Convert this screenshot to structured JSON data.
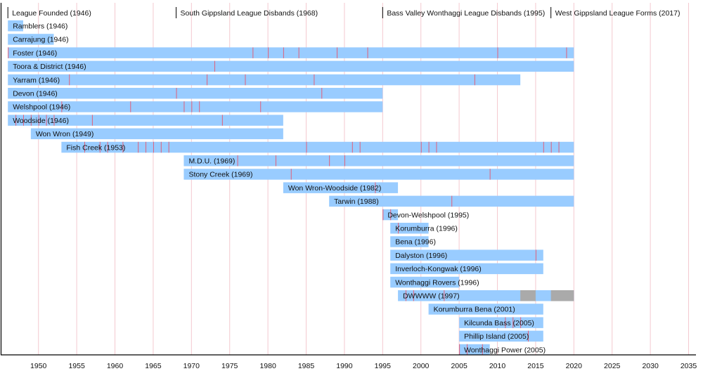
{
  "chart_data": {
    "type": "timeline",
    "xlim": [
      1945,
      2035
    ],
    "x_ticks": [
      1950,
      1955,
      1960,
      1965,
      1970,
      1975,
      1980,
      1985,
      1990,
      1995,
      2000,
      2005,
      2010,
      2015,
      2020,
      2025,
      2030,
      2035
    ],
    "grid": true,
    "colors": {
      "bar": "#99ccff",
      "premiership_mark": "#e0607a",
      "gap": "#aaaaaa",
      "grid": "#f4c9d0",
      "event_line": "#000000"
    },
    "events": [
      {
        "year": 1946,
        "label": "League Founded (1946)"
      },
      {
        "year": 1968,
        "label": "South Gippsland League Disbands (1968)"
      },
      {
        "year": 1995,
        "label": "Bass Valley Wonthaggi League Disbands (1995)"
      },
      {
        "year": 2017,
        "label": "West Gippsland League Forms (2017)"
      }
    ],
    "clubs": [
      {
        "label": "Ramblers (1946)",
        "start": 1946,
        "end": 1948,
        "marks": []
      },
      {
        "label": "Carrajung (1946)",
        "start": 1946,
        "end": 1952,
        "marks": []
      },
      {
        "label": "Foster (1946)",
        "start": 1946,
        "end": 2020,
        "marks": [
          1946,
          1978,
          1980,
          1982,
          1984,
          1989,
          1993,
          2010,
          2019
        ]
      },
      {
        "label": "Toora & District (1946)",
        "start": 1946,
        "end": 2020,
        "marks": [
          1973
        ]
      },
      {
        "label": "Yarram (1946)",
        "start": 1946,
        "end": 2013,
        "marks": [
          1954,
          1972,
          1977,
          1986,
          2007
        ]
      },
      {
        "label": "Devon (1946)",
        "start": 1946,
        "end": 1995,
        "marks": [
          1968,
          1987
        ]
      },
      {
        "label": "Welshpool (1946)",
        "start": 1946,
        "end": 1995,
        "marks": [
          1953,
          1962,
          1969,
          1970,
          1971,
          1979
        ]
      },
      {
        "label": "Woodside (1946)",
        "start": 1946,
        "end": 1982,
        "marks": [
          1947,
          1948,
          1949,
          1950,
          1951,
          1952,
          1957,
          1974
        ]
      },
      {
        "label": "Won Wron (1949)",
        "start": 1949,
        "end": 1982,
        "marks": []
      },
      {
        "label": "Fish Creek (1953)",
        "start": 1953,
        "end": 2020,
        "marks": [
          1956,
          1958,
          1959,
          1961,
          1963,
          1964,
          1965,
          1966,
          1967,
          1985,
          1991,
          1992,
          2000,
          2001,
          2002,
          2016,
          2017,
          2018
        ]
      },
      {
        "label": "M.D.U. (1969)",
        "start": 1969,
        "end": 2020,
        "marks": [
          1976,
          1981,
          1988,
          1990
        ]
      },
      {
        "label": "Stony Creek (1969)",
        "start": 1969,
        "end": 2020,
        "marks": [
          1983,
          2009
        ]
      },
      {
        "label": "Won Wron-Woodside (1982)",
        "start": 1982,
        "end": 1997,
        "marks": [
          1994
        ]
      },
      {
        "label": "Tarwin (1988)",
        "start": 1988,
        "end": 2020,
        "marks": [
          2004
        ]
      },
      {
        "label": "Devon-Welshpool (1995)",
        "start": 1995,
        "end": 1997,
        "marks": [
          1995,
          1996
        ]
      },
      {
        "label": "Korumburra (1996)",
        "start": 1996,
        "end": 2001,
        "marks": [
          1997
        ]
      },
      {
        "label": "Bena (1996)",
        "start": 1996,
        "end": 2001,
        "marks": []
      },
      {
        "label": "Dalyston (1996)",
        "start": 1996,
        "end": 2016,
        "marks": [
          2015
        ]
      },
      {
        "label": "Inverloch-Kongwak (1996)",
        "start": 1996,
        "end": 2016,
        "marks": []
      },
      {
        "label": "Wonthaggi Rovers (1996)",
        "start": 1996,
        "end": 2005,
        "marks": []
      },
      {
        "label": "DWWWW (1997)",
        "start": 1997,
        "end": 2020,
        "marks": [
          1998,
          1999,
          2003
        ],
        "gaps": [
          [
            2013,
            2015
          ],
          [
            2017,
            2020
          ]
        ]
      },
      {
        "label": "Korumburra Bena (2001)",
        "start": 2001,
        "end": 2016,
        "marks": []
      },
      {
        "label": "Kilcunda Bass (2005)",
        "start": 2005,
        "end": 2016,
        "marks": [
          2011,
          2012,
          2013
        ]
      },
      {
        "label": "Phillip Island (2005)",
        "start": 2005,
        "end": 2016,
        "marks": [
          2014
        ]
      },
      {
        "label": "Wonthaggi Power (2005)",
        "start": 2005,
        "end": 2009,
        "marks": [
          2005,
          2006,
          2008
        ]
      }
    ]
  }
}
